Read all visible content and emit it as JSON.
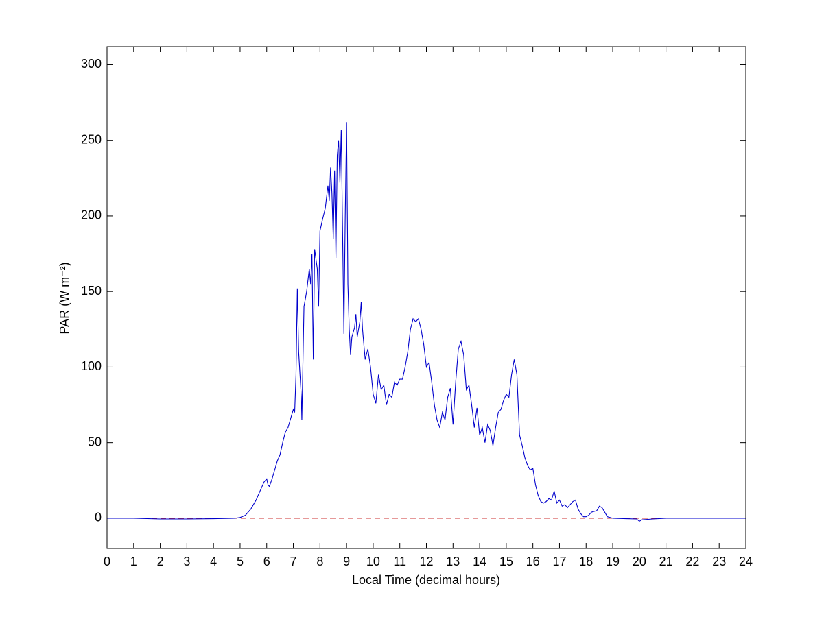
{
  "chart_data": {
    "type": "line",
    "xlabel": "Local Time (decimal hours)",
    "ylabel": "PAR (W m⁻²)",
    "xlim": [
      0,
      24
    ],
    "xticks": [
      0,
      1,
      2,
      3,
      4,
      5,
      6,
      7,
      8,
      9,
      10,
      11,
      12,
      13,
      14,
      15,
      16,
      17,
      18,
      19,
      20,
      21,
      22,
      23,
      24
    ],
    "ylim": [
      -20,
      312
    ],
    "yticks": [
      0,
      50,
      100,
      150,
      200,
      250,
      300
    ],
    "hline": {
      "value": 0,
      "color": "#cc3333",
      "style": "dashed"
    },
    "series": [
      {
        "name": "PAR",
        "color": "#0000cc",
        "x": [
          0,
          1,
          2,
          3,
          4,
          4.8,
          5,
          5.2,
          5.4,
          5.6,
          5.8,
          5.9,
          6.0,
          6.05,
          6.1,
          6.2,
          6.3,
          6.4,
          6.5,
          6.6,
          6.7,
          6.8,
          6.9,
          7.0,
          7.05,
          7.1,
          7.15,
          7.2,
          7.3,
          7.32,
          7.4,
          7.5,
          7.6,
          7.65,
          7.7,
          7.75,
          7.8,
          7.9,
          7.95,
          8.0,
          8.1,
          8.2,
          8.3,
          8.35,
          8.4,
          8.45,
          8.5,
          8.55,
          8.6,
          8.65,
          8.7,
          8.75,
          8.8,
          8.85,
          8.9,
          8.95,
          9.0,
          9.05,
          9.1,
          9.15,
          9.2,
          9.3,
          9.35,
          9.4,
          9.5,
          9.55,
          9.6,
          9.7,
          9.8,
          9.9,
          10.0,
          10.1,
          10.2,
          10.3,
          10.4,
          10.5,
          10.6,
          10.7,
          10.8,
          10.9,
          11.0,
          11.1,
          11.2,
          11.3,
          11.4,
          11.5,
          11.6,
          11.7,
          11.8,
          11.9,
          12.0,
          12.1,
          12.2,
          12.3,
          12.4,
          12.5,
          12.6,
          12.7,
          12.8,
          12.9,
          13.0,
          13.1,
          13.2,
          13.3,
          13.4,
          13.5,
          13.6,
          13.7,
          13.8,
          13.9,
          14.0,
          14.1,
          14.2,
          14.3,
          14.4,
          14.5,
          14.6,
          14.7,
          14.8,
          14.9,
          15.0,
          15.1,
          15.2,
          15.3,
          15.4,
          15.5,
          15.6,
          15.7,
          15.8,
          15.9,
          16.0,
          16.1,
          16.2,
          16.3,
          16.4,
          16.5,
          16.6,
          16.7,
          16.8,
          16.9,
          17.0,
          17.1,
          17.2,
          17.3,
          17.4,
          17.5,
          17.6,
          17.7,
          17.8,
          17.9,
          18.0,
          18.1,
          18.2,
          18.4,
          18.5,
          18.6,
          18.7,
          18.8,
          19.0,
          19.5,
          19.9,
          20.0,
          20.1,
          20.5,
          21,
          22,
          23,
          24
        ],
        "values": [
          0,
          0,
          -0.5,
          -0.5,
          -0.3,
          0,
          0.5,
          2,
          6,
          12,
          20,
          24,
          26,
          22,
          21,
          26,
          32,
          38,
          42,
          50,
          57,
          60,
          66,
          72,
          70,
          95,
          152,
          110,
          80,
          65,
          140,
          150,
          165,
          155,
          175,
          105,
          178,
          165,
          140,
          190,
          198,
          205,
          220,
          210,
          232,
          215,
          185,
          230,
          172,
          240,
          250,
          222,
          257,
          190,
          122,
          200,
          262,
          155,
          125,
          108,
          120,
          126,
          135,
          120,
          130,
          143,
          125,
          105,
          112,
          100,
          82,
          76,
          95,
          85,
          88,
          75,
          82,
          80,
          90,
          88,
          92,
          92,
          100,
          110,
          125,
          132,
          130,
          132,
          125,
          115,
          100,
          103,
          90,
          75,
          65,
          60,
          70,
          65,
          80,
          86,
          62,
          90,
          112,
          117,
          108,
          85,
          88,
          75,
          60,
          73,
          55,
          60,
          50,
          62,
          58,
          48,
          60,
          70,
          72,
          78,
          82,
          80,
          95,
          105,
          95,
          55,
          48,
          40,
          35,
          32,
          33,
          22,
          15,
          11,
          10,
          11,
          13,
          12,
          18,
          10,
          12,
          8,
          9,
          7,
          9,
          11,
          12,
          6,
          3,
          1,
          1,
          2,
          4,
          5,
          8,
          7,
          4,
          1,
          0,
          -0.3,
          -0.5,
          -2,
          -1,
          -0.5,
          0,
          0,
          0,
          0
        ]
      }
    ]
  }
}
